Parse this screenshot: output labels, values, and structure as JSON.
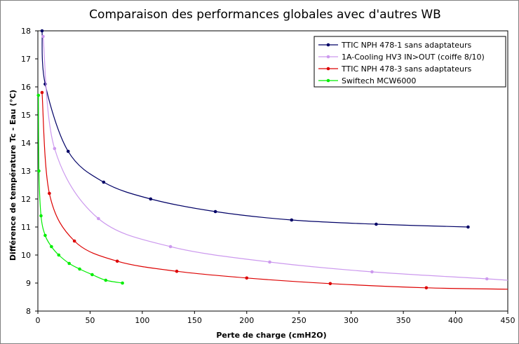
{
  "chart_data": {
    "type": "line",
    "title": "Comparaison des performances globales avec d'autres WB",
    "xlabel": "Perte de charge (cmH2O)",
    "ylabel": "Différence de température Tc - Eau (°C)",
    "xlim": [
      0,
      450
    ],
    "ylim": [
      8,
      18
    ],
    "xticks": [
      0,
      50,
      100,
      150,
      200,
      250,
      300,
      350,
      400,
      450
    ],
    "yticks": [
      8,
      9,
      10,
      11,
      12,
      13,
      14,
      15,
      16,
      17,
      18
    ],
    "grid": false,
    "legend_position": "top-right",
    "series": [
      {
        "name": "TTIC NPH 478-1 sans adaptateurs",
        "color": "#000066",
        "x": [
          4,
          7,
          29,
          63,
          108,
          170,
          243,
          324,
          412
        ],
        "y": [
          18,
          16.1,
          13.7,
          12.6,
          12.0,
          11.55,
          11.25,
          11.1,
          11.0
        ]
      },
      {
        "name": "1A-Cooling HV3 IN>OUT (coiffe 8/10)",
        "color": "#cc99ee",
        "x": [
          5,
          16,
          58,
          127,
          222,
          320,
          430,
          450
        ],
        "y": [
          17.8,
          13.8,
          11.3,
          10.3,
          9.75,
          9.4,
          9.15,
          9.1
        ],
        "marker_count": 7
      },
      {
        "name": "TTIC NPH 478-3 sans adaptateurs",
        "color": "#dd0000",
        "x": [
          4,
          11,
          35,
          76,
          133,
          200,
          280,
          372,
          450
        ],
        "y": [
          15.8,
          12.2,
          10.5,
          9.78,
          9.42,
          9.18,
          8.98,
          8.83,
          8.78
        ],
        "marker_count": 8
      },
      {
        "name": "Swiftech MCW6000",
        "color": "#00ee00",
        "x": [
          0.5,
          1,
          3,
          7,
          13,
          20,
          30,
          40,
          52,
          65,
          81
        ],
        "y": [
          15.7,
          13.0,
          11.4,
          10.7,
          10.3,
          10.0,
          9.7,
          9.5,
          9.3,
          9.1,
          9.0
        ]
      }
    ]
  }
}
